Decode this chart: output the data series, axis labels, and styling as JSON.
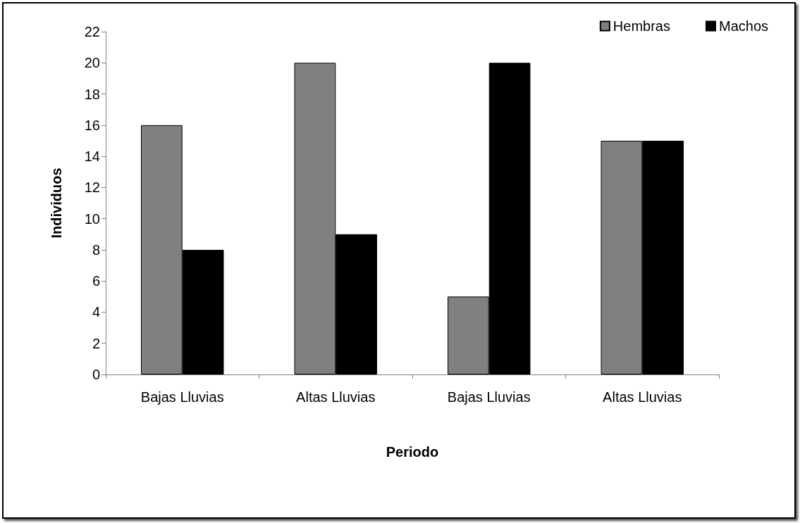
{
  "chart_data": {
    "type": "bar",
    "xlabel": "Periodo",
    "ylabel": "Individuos",
    "categories": [
      "Bajas Lluvias",
      "Altas Lluvias",
      "Bajas Lluvias",
      "Altas Lluvias"
    ],
    "series": [
      {
        "name": "Hembras",
        "color": "#808080",
        "values": [
          16,
          20,
          5,
          15
        ]
      },
      {
        "name": "Machos",
        "color": "#000000",
        "values": [
          8,
          9,
          20,
          15
        ]
      }
    ],
    "ylim": [
      0,
      22
    ],
    "yticks": [
      0,
      2,
      4,
      6,
      8,
      10,
      12,
      14,
      16,
      18,
      20,
      22
    ],
    "grid": false,
    "legend": "top right"
  }
}
